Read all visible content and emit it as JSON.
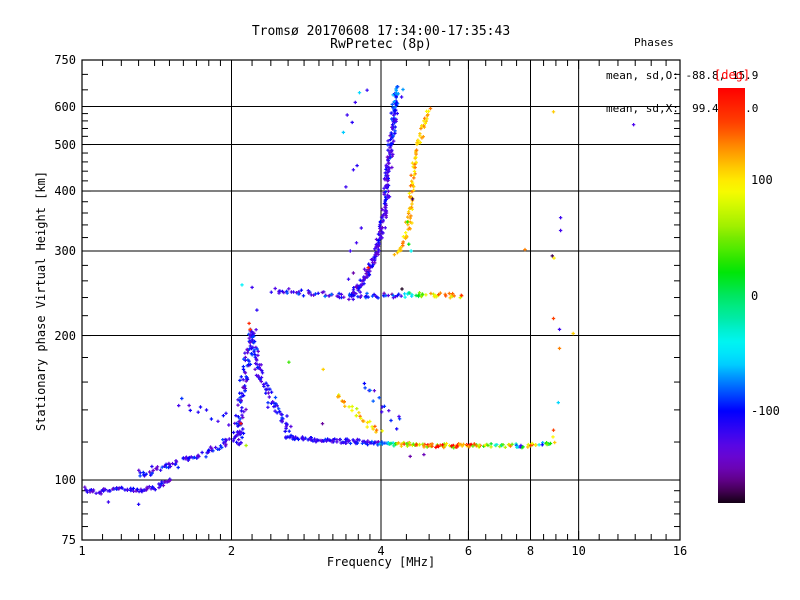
{
  "header": {
    "title_line1": "Tromsø 20170608 17:34:00-17:35:43",
    "title_line2": "RwPretec (8p)"
  },
  "stats": {
    "heading": "Phases",
    "line_o": "mean, sd,O: -88.8, 15.9",
    "line_x": "mean, sd,X:  99.4, 24.0"
  },
  "chart_data": {
    "type": "scatter",
    "title": "Tromsø 20170608 17:34:00-17:35:43",
    "subtitle": "RwPretec (8p)",
    "xlabel": "Frequency [MHz]",
    "ylabel": "Stationary phase Virtual Height [km]",
    "x_scale": "log",
    "y_scale": "log",
    "xlim": [
      1,
      16
    ],
    "ylim": [
      75,
      750
    ],
    "x_major_ticks": [
      1,
      2,
      4,
      6,
      8,
      10,
      16
    ],
    "x_minor_ticks": [
      1.1,
      1.2,
      1.3,
      1.4,
      1.5,
      1.6,
      1.7,
      1.8,
      1.9,
      2.2,
      2.4,
      2.6,
      2.8,
      3.0,
      3.2,
      3.4,
      3.6,
      3.8,
      4.5,
      5.0,
      5.5,
      6.5,
      7.0,
      7.5,
      8.5,
      9.0,
      9.5,
      11,
      12,
      13,
      14,
      15
    ],
    "y_major_ticks": [
      75,
      100,
      200,
      300,
      400,
      500,
      600,
      750
    ],
    "y_minor_ticks": [
      80,
      85,
      90,
      95,
      120,
      140,
      160,
      180,
      220,
      240,
      260,
      280,
      320,
      340,
      360,
      380,
      420,
      440,
      460,
      480,
      520,
      540,
      560,
      580,
      650,
      700
    ],
    "x_gridlines": [
      2,
      4,
      6,
      8,
      10
    ],
    "y_gridlines": [
      100,
      200,
      300,
      400,
      500,
      600
    ],
    "grid_color": "#000000",
    "colorbar": {
      "label": "[deg]",
      "label_color": "#ff0000",
      "min": -180,
      "max": 180,
      "ticks": [
        100,
        0,
        -100
      ],
      "colormap_stops": [
        [
          180,
          0,
          100,
          50
        ],
        [
          150,
          15,
          100,
          50
        ],
        [
          120,
          40,
          100,
          50
        ],
        [
          100,
          55,
          100,
          50
        ],
        [
          60,
          80,
          100,
          47
        ],
        [
          30,
          110,
          100,
          45
        ],
        [
          0,
          145,
          100,
          45
        ],
        [
          -30,
          172,
          100,
          47
        ],
        [
          -60,
          192,
          100,
          50
        ],
        [
          -100,
          240,
          100,
          50
        ],
        [
          -125,
          258,
          95,
          48
        ],
        [
          -145,
          272,
          95,
          40
        ],
        [
          -165,
          285,
          100,
          22
        ],
        [
          -180,
          295,
          100,
          4
        ]
      ]
    },
    "traces": [
      {
        "name": "e-region-flat",
        "ctrl": [
          [
            1.0,
            96
          ],
          [
            1.08,
            94
          ],
          [
            1.18,
            96
          ],
          [
            1.3,
            95
          ],
          [
            1.42,
            97
          ],
          [
            1.52,
            100
          ]
        ],
        "n": 80,
        "jx": 4,
        "jy": 2.5,
        "deg": -118,
        "deg_jitter": 28
      },
      {
        "name": "e-region-rise",
        "ctrl": [
          [
            1.3,
            103
          ],
          [
            1.5,
            107
          ],
          [
            1.7,
            112
          ],
          [
            1.88,
            117
          ],
          [
            2.02,
            122
          ],
          [
            2.12,
            127
          ]
        ],
        "n": 85,
        "jx": 6,
        "jy": 5,
        "deg": -115,
        "deg_jitter": 28
      },
      {
        "name": "e-region-mid-sparse",
        "ctrl": [
          [
            1.56,
            148
          ],
          [
            1.7,
            142
          ],
          [
            1.85,
            138
          ],
          [
            2.0,
            133
          ]
        ],
        "n": 12,
        "jx": 5,
        "jy": 8,
        "deg": -112,
        "deg_jitter": 25
      },
      {
        "name": "cusp",
        "ctrl": [
          [
            2.05,
            118
          ],
          [
            2.1,
            145
          ],
          [
            2.16,
            178
          ],
          [
            2.19,
            205
          ],
          [
            2.23,
            188
          ],
          [
            2.28,
            168
          ],
          [
            2.38,
            150
          ],
          [
            2.5,
            137
          ],
          [
            2.62,
            127
          ]
        ],
        "n": 175,
        "jx": 5,
        "jy": 7,
        "deg": -114,
        "deg_jitter": 30
      },
      {
        "name": "es-band-main",
        "ctrl": [
          [
            2.58,
            123
          ],
          [
            3.1,
            121
          ],
          [
            3.7,
            120
          ],
          [
            4.3,
            119
          ],
          [
            5.0,
            118
          ],
          [
            5.9,
            118
          ],
          [
            6.3,
            118
          ]
        ],
        "n": 185,
        "jx": 4,
        "jy": 2.6,
        "deg_f": [
          [
            2.58,
            -115
          ],
          [
            3.95,
            -108
          ],
          [
            4.15,
            -20
          ],
          [
            4.4,
            95
          ],
          [
            4.8,
            125
          ],
          [
            5.5,
            125
          ],
          [
            6.3,
            110
          ]
        ],
        "deg_jitter_f": [
          [
            2.58,
            22
          ],
          [
            3.9,
            30
          ],
          [
            4.3,
            85
          ],
          [
            6.3,
            85
          ]
        ]
      },
      {
        "name": "es-band-right",
        "ctrl": [
          [
            6.3,
            118
          ],
          [
            7.2,
            118
          ],
          [
            8.0,
            118
          ],
          [
            8.9,
            119
          ]
        ],
        "n": 48,
        "jx": 4,
        "jy": 2.5,
        "deg_f": [
          [
            6.3,
            110
          ],
          [
            6.8,
            -20
          ],
          [
            7.2,
            120
          ],
          [
            7.6,
            -80
          ],
          [
            8.1,
            125
          ],
          [
            8.5,
            -60
          ],
          [
            8.9,
            80
          ]
        ],
        "deg_jitter": 75
      },
      {
        "name": "band-diagonal-warm",
        "ctrl": [
          [
            3.27,
            150
          ],
          [
            3.5,
            140
          ],
          [
            3.75,
            132
          ],
          [
            3.98,
            126
          ]
        ],
        "n": 28,
        "jx": 4,
        "jy": 4,
        "deg": 105,
        "deg_jitter": 38
      },
      {
        "name": "above-band-blue",
        "ctrl": [
          [
            3.7,
            158
          ],
          [
            3.92,
            146
          ],
          [
            4.12,
            138
          ],
          [
            4.36,
            130
          ]
        ],
        "n": 15,
        "jx": 6,
        "jy": 8,
        "deg": -108,
        "deg_jitter": 30
      },
      {
        "name": "f-region-240km-band",
        "ctrl": [
          [
            2.44,
            248
          ],
          [
            2.9,
            245
          ],
          [
            3.4,
            243
          ],
          [
            3.9,
            242
          ],
          [
            4.4,
            243
          ],
          [
            4.9,
            243
          ],
          [
            5.4,
            244
          ],
          [
            5.82,
            242
          ]
        ],
        "n": 105,
        "jx": 5,
        "jy": 3.5,
        "deg_f": [
          [
            2.44,
            -108
          ],
          [
            3.4,
            -114
          ],
          [
            4.3,
            -118
          ],
          [
            4.62,
            -30
          ],
          [
            4.95,
            100
          ],
          [
            5.5,
            122
          ],
          [
            5.82,
            115
          ]
        ],
        "deg_jitter_f": [
          [
            2.44,
            35
          ],
          [
            4.4,
            40
          ],
          [
            4.9,
            42
          ],
          [
            5.82,
            45
          ]
        ]
      },
      {
        "name": "f-region-o-trace",
        "ctrl": [
          [
            3.47,
            241
          ],
          [
            3.6,
            252
          ],
          [
            3.74,
            268
          ],
          [
            3.88,
            291
          ],
          [
            3.98,
            318
          ],
          [
            4.05,
            355
          ],
          [
            4.1,
            392
          ],
          [
            4.13,
            432
          ],
          [
            4.17,
            476
          ],
          [
            4.2,
            517
          ],
          [
            4.24,
            556
          ],
          [
            4.27,
            601
          ],
          [
            4.3,
            642
          ],
          [
            4.32,
            657
          ]
        ],
        "n": 255,
        "jx": 3.5,
        "jy": 5,
        "deg_t": [
          [
            0,
            -122
          ],
          [
            0.7,
            -118
          ],
          [
            0.9,
            -100
          ],
          [
            1,
            -75
          ]
        ],
        "deg_jitter": 26
      },
      {
        "name": "f-region-x-trace",
        "ctrl": [
          [
            4.3,
            293
          ],
          [
            4.42,
            307
          ],
          [
            4.52,
            330
          ],
          [
            4.59,
            365
          ],
          [
            4.63,
            405
          ],
          [
            4.67,
            448
          ],
          [
            4.73,
            492
          ],
          [
            4.82,
            530
          ],
          [
            4.92,
            562
          ],
          [
            5.01,
            590
          ]
        ],
        "n": 95,
        "jx": 3,
        "jy": 5,
        "deg": 115,
        "deg_jitter": 22
      }
    ],
    "extra_points": [
      [
        3.36,
        530,
        -60
      ],
      [
        3.5,
        556,
        -112
      ],
      [
        3.42,
        576,
        -120
      ],
      [
        3.55,
        612,
        -120
      ],
      [
        3.62,
        641,
        -55
      ],
      [
        3.75,
        649,
        -115
      ],
      [
        3.4,
        408,
        -120
      ],
      [
        3.52,
        443,
        -118
      ],
      [
        3.58,
        452,
        -112
      ],
      [
        3.47,
        300,
        -120
      ],
      [
        3.57,
        312,
        -122
      ],
      [
        3.44,
        262,
        -118
      ],
      [
        3.52,
        270,
        -152
      ],
      [
        3.3,
        240,
        -118
      ],
      [
        3.65,
        335,
        -120
      ],
      [
        4.43,
        651,
        -70
      ],
      [
        4.4,
        628,
        -118
      ],
      [
        3.77,
        277,
        168
      ],
      [
        4.41,
        250,
        -178
      ],
      [
        4.55,
        310,
        20
      ],
      [
        4.6,
        300,
        -40
      ],
      [
        4.63,
        385,
        -170
      ],
      [
        4.52,
        345,
        30
      ],
      [
        2.17,
        212,
        162
      ],
      [
        2.09,
        131,
        170
      ],
      [
        2.11,
        156,
        -150
      ],
      [
        2.61,
        176,
        35
      ],
      [
        3.06,
        170,
        108
      ],
      [
        2.14,
        118,
        65
      ],
      [
        3.05,
        131,
        -155
      ],
      [
        4.58,
        112,
        -152
      ],
      [
        4.88,
        113,
        -148
      ],
      [
        2.1,
        255,
        -45
      ],
      [
        2.2,
        252,
        -120
      ],
      [
        2.25,
        226,
        -112
      ],
      [
        2.18,
        206,
        150
      ],
      [
        8.9,
        585,
        110
      ],
      [
        9.2,
        352,
        -120
      ],
      [
        9.2,
        331,
        -122
      ],
      [
        8.85,
        293,
        -170
      ],
      [
        8.92,
        290,
        100
      ],
      [
        7.8,
        302,
        132
      ],
      [
        8.9,
        217,
        150
      ],
      [
        9.15,
        206,
        -120
      ],
      [
        9.75,
        202,
        108
      ],
      [
        9.15,
        188,
        132
      ],
      [
        9.1,
        145,
        -55
      ],
      [
        8.9,
        127,
        150
      ],
      [
        8.88,
        123,
        95
      ],
      [
        12.9,
        550,
        -125
      ],
      [
        1.13,
        90,
        -120
      ],
      [
        1.3,
        89,
        -110
      ]
    ]
  }
}
